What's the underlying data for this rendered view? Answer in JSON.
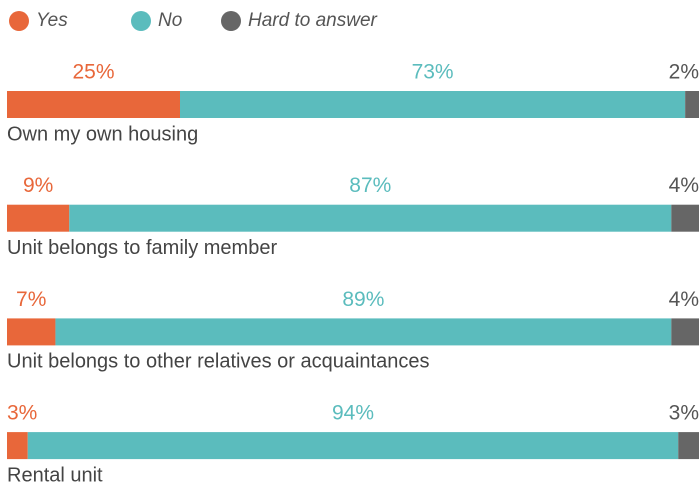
{
  "chart_data": {
    "type": "stacked-bar-horizontal",
    "categories": [
      "Own my own housing",
      "Unit belongs to family member",
      "Unit belongs to other relatives or acquaintances",
      "Rental unit"
    ],
    "series": [
      {
        "name": "Yes",
        "color": "#e8673a",
        "values": [
          25,
          9,
          7,
          3
        ],
        "value_labels": [
          "25%",
          "9%",
          "7%",
          "3%"
        ]
      },
      {
        "name": "No",
        "color": "#5bbcbd",
        "values": [
          73,
          87,
          89,
          94
        ],
        "value_labels": [
          "73%",
          "87%",
          "89%",
          "94%"
        ]
      },
      {
        "name": "Hard to answer",
        "color": "#666666",
        "values": [
          2,
          4,
          4,
          3
        ],
        "value_labels": [
          "2%",
          "4%",
          "4%",
          "3%"
        ]
      }
    ],
    "legend": "top-left"
  }
}
